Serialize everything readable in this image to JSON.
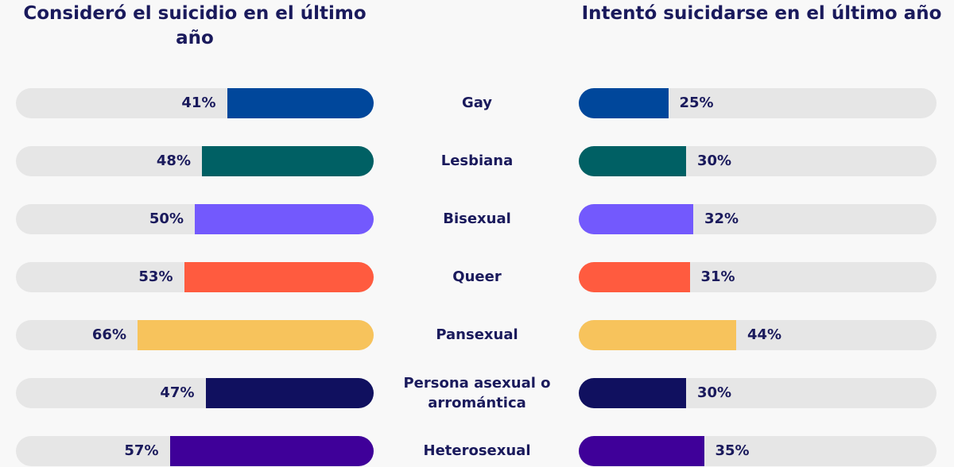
{
  "chart_data": [
    {
      "type": "bar",
      "orientation": "horizontal",
      "direction": "right-to-left",
      "title": "Consideró el suicidio en el último año",
      "categories": [
        "Gay",
        "Lesbiana",
        "Bisexual",
        "Queer",
        "Pansexual",
        "Persona asexual o arromántica",
        "Heterosexual"
      ],
      "values": [
        41,
        48,
        50,
        53,
        66,
        47,
        57
      ],
      "labels": [
        "41%",
        "48%",
        "50%",
        "53%",
        "66%",
        "47%",
        "57%"
      ],
      "xlim": [
        0,
        100
      ]
    },
    {
      "type": "bar",
      "orientation": "horizontal",
      "direction": "left-to-right",
      "title": "Intentó suicidarse en el último año",
      "categories": [
        "Gay",
        "Lesbiana",
        "Bisexual",
        "Queer",
        "Pansexual",
        "Persona asexual o arromántica",
        "Heterosexual"
      ],
      "values": [
        25,
        30,
        32,
        31,
        44,
        30,
        35
      ],
      "labels": [
        "25%",
        "30%",
        "32%",
        "31%",
        "44%",
        "30%",
        "35%"
      ],
      "xlim": [
        0,
        100
      ]
    }
  ],
  "colors": [
    "#00479b",
    "#006064",
    "#7359fd",
    "#ff5b3f",
    "#f7c35c",
    "#10105f",
    "#3f0099"
  ],
  "track_color": "#e6e6e6"
}
